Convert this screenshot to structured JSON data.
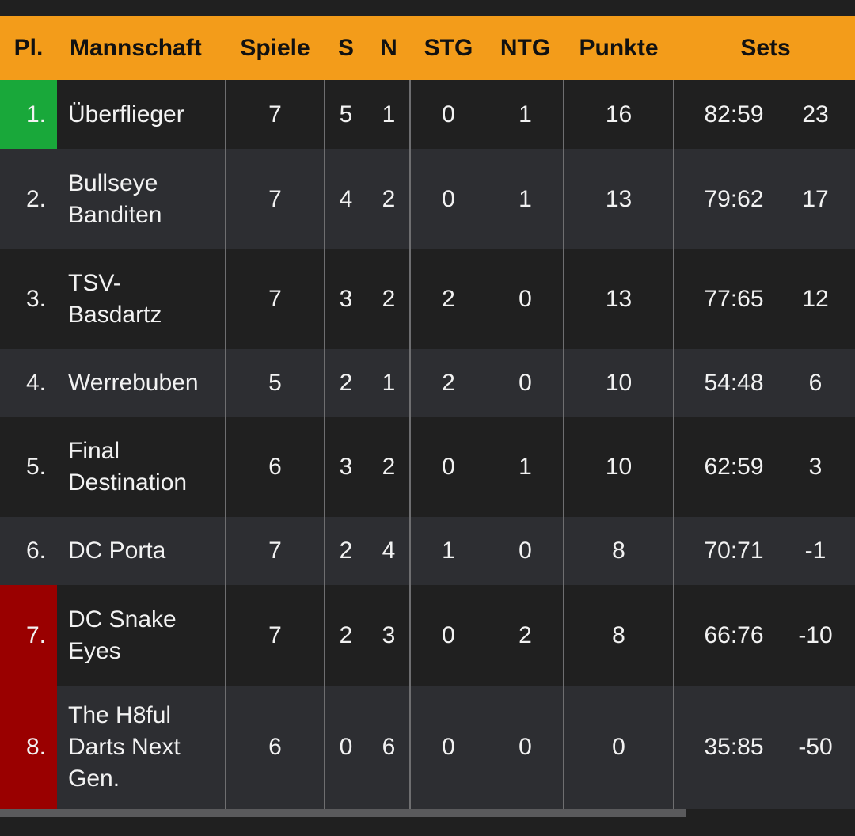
{
  "colors": {
    "header": "#f39c1a",
    "row_dark": "#202020",
    "row_light": "#2d2e32",
    "promotion": "#19a83a",
    "relegation": "#9a0000"
  },
  "header": {
    "pl": "Pl.",
    "name": "Mannschaft",
    "spiele": "Spiele",
    "s": "S",
    "n": "N",
    "stg": "STG",
    "ntg": "NTG",
    "punkte": "Punkte",
    "sets": "Sets"
  },
  "rows": [
    {
      "pl": "1.",
      "name": "Überflieger",
      "spiele": "7",
      "s": "5",
      "n": "1",
      "stg": "0",
      "ntg": "1",
      "punkte": "16",
      "sets": "82:59",
      "diff": "23",
      "status": "promotion"
    },
    {
      "pl": "2.",
      "name": "Bullseye Banditen",
      "spiele": "7",
      "s": "4",
      "n": "2",
      "stg": "0",
      "ntg": "1",
      "punkte": "13",
      "sets": "79:62",
      "diff": "17",
      "status": ""
    },
    {
      "pl": "3.",
      "name": "TSV-Basdartz",
      "spiele": "7",
      "s": "3",
      "n": "2",
      "stg": "2",
      "ntg": "0",
      "punkte": "13",
      "sets": "77:65",
      "diff": "12",
      "status": ""
    },
    {
      "pl": "4.",
      "name": "Werrebuben",
      "spiele": "5",
      "s": "2",
      "n": "1",
      "stg": "2",
      "ntg": "0",
      "punkte": "10",
      "sets": "54:48",
      "diff": "6",
      "status": ""
    },
    {
      "pl": "5.",
      "name": "Final Destination",
      "spiele": "6",
      "s": "3",
      "n": "2",
      "stg": "0",
      "ntg": "1",
      "punkte": "10",
      "sets": "62:59",
      "diff": "3",
      "status": ""
    },
    {
      "pl": "6.",
      "name": "DC Porta",
      "spiele": "7",
      "s": "2",
      "n": "4",
      "stg": "1",
      "ntg": "0",
      "punkte": "8",
      "sets": "70:71",
      "diff": "-1",
      "status": ""
    },
    {
      "pl": "7.",
      "name": "DC Snake Eyes",
      "spiele": "7",
      "s": "2",
      "n": "3",
      "stg": "0",
      "ntg": "2",
      "punkte": "8",
      "sets": "66:76",
      "diff": "-10",
      "status": "relegation"
    },
    {
      "pl": "8.",
      "name": "The H8ful Darts Next Gen.",
      "spiele": "6",
      "s": "0",
      "n": "6",
      "stg": "0",
      "ntg": "0",
      "punkte": "0",
      "sets": "35:85",
      "diff": "-50",
      "status": "relegation"
    }
  ]
}
